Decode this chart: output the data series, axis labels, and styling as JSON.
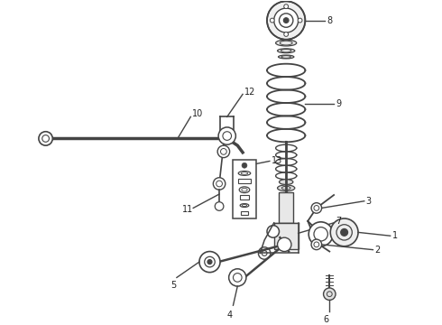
{
  "bg_color": "#ffffff",
  "line_color": "#444444",
  "fig_width": 4.9,
  "fig_height": 3.6,
  "dpi": 100,
  "xlim": [
    0,
    490
  ],
  "ylim": [
    0,
    360
  ]
}
